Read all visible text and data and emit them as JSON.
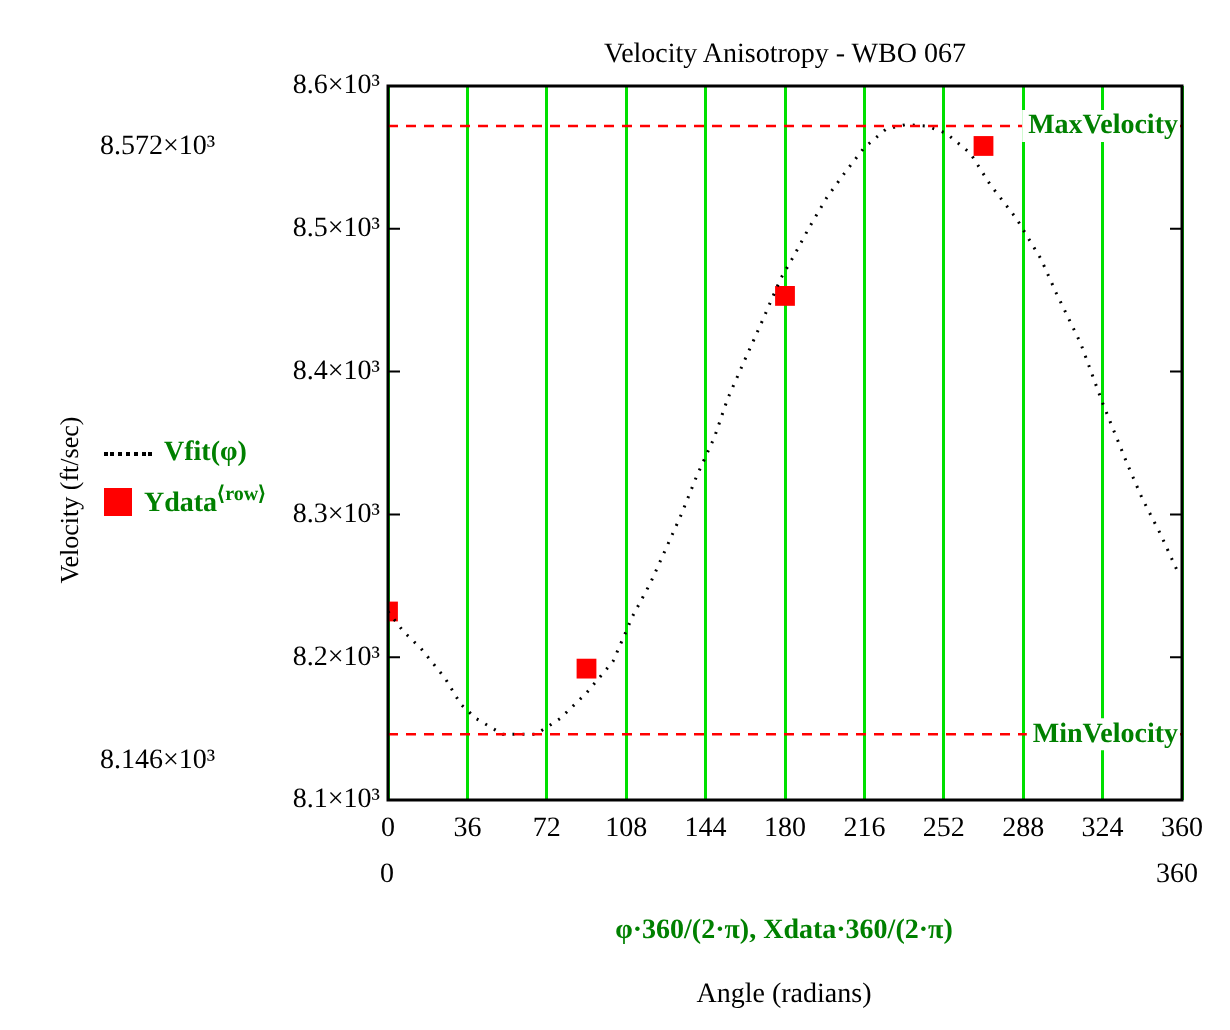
{
  "chart_data": {
    "type": "line",
    "title": "Velocity Anisotropy - WBO 067",
    "xlim": [
      0,
      360
    ],
    "xticks": [
      0,
      36,
      72,
      108,
      144,
      180,
      216,
      252,
      288,
      324,
      360
    ],
    "ylim": [
      8100,
      8600
    ],
    "yticks": [
      {
        "value": 8100,
        "label": "8.1×10³"
      },
      {
        "value": 8200,
        "label": "8.2×10³"
      },
      {
        "value": 8300,
        "label": "8.3×10³"
      },
      {
        "value": 8400,
        "label": "8.4×10³"
      },
      {
        "value": 8500,
        "label": "8.5×10³"
      },
      {
        "value": 8600,
        "label": "8.6×10³"
      }
    ],
    "grid": "x",
    "legend": "left",
    "series": [
      {
        "name": "Vfit(φ)",
        "color": "#000000",
        "line_style": "dotted",
        "marker": "none",
        "x": [
          0,
          7,
          15,
          26,
          33,
          40,
          52,
          67,
          78,
          90,
          102,
          111,
          119,
          126,
          133,
          140,
          148,
          154,
          162,
          169,
          178,
          184,
          191,
          199,
          207,
          216,
          226,
          235,
          244,
          253,
          264,
          273,
          285,
          296,
          303,
          314,
          324,
          335,
          342,
          350,
          358
        ],
        "values": [
          8232,
          8218,
          8206,
          8185,
          8167,
          8157,
          8146,
          8146,
          8157,
          8175,
          8197,
          8229,
          8252,
          8276,
          8300,
          8327,
          8354,
          8381,
          8409,
          8433,
          8465,
          8481,
          8501,
          8522,
          8539,
          8557,
          8570,
          8573,
          8572,
          8567,
          8553,
          8531,
          8507,
          8479,
          8455,
          8420,
          8378,
          8336,
          8311,
          8287,
          8260
        ]
      },
      {
        "name": "Ydata$^{⟨row⟩}$",
        "type": "scatter",
        "color": "#ff0000",
        "marker": "square",
        "x": [
          0,
          90,
          180,
          270
        ],
        "values": [
          8232,
          8192,
          8453,
          8558
        ]
      }
    ],
    "ref_lines": [
      {
        "axis": "y",
        "value": 8572,
        "label": "MaxVelocity",
        "color": "#ff0000",
        "line_style": "dashed"
      },
      {
        "axis": "y",
        "value": 8146,
        "label": "MinVelocity",
        "color": "#ff0000",
        "line_style": "dashed"
      }
    ],
    "annotations": [
      "8.572×10³",
      "8.146×10³",
      "0",
      "360",
      "φ·360/(2·π), Xdata·360/(2·π)",
      "Angle (radians)",
      "Velocity (ft/sec)"
    ]
  }
}
